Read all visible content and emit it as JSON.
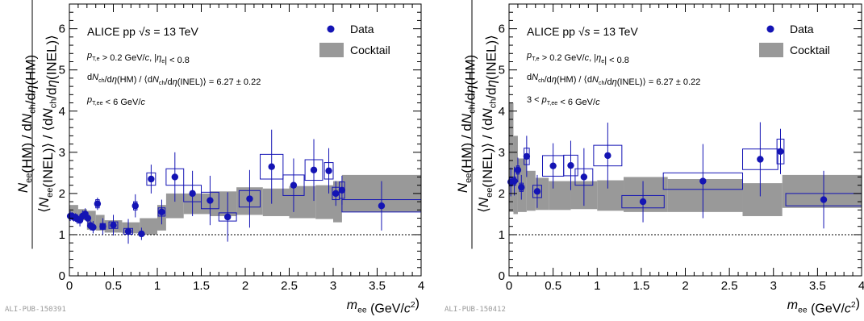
{
  "figure": {
    "ylabel_top": "N_ee(HM) / dN_ch/dη(HM)",
    "ylabel_bottom": "⟨N_ee(INEL)⟩ / ⟨dN_ch/dη(INEL)⟩",
    "xlabel": "m_ee (GeV/c²)",
    "colors": {
      "data": "#1414b4",
      "band": "#999999",
      "box": "#1414b4"
    }
  },
  "chart_data": [
    {
      "id": "ALI-PUB-150391",
      "type": "scatter",
      "footer": "ALI-PUB-150391",
      "title_lines": [
        "ALICE pp √s = 13 TeV",
        "p_T,e > 0.2 GeV/c, |η_e| < 0.8",
        "dN_ch/dη(HM) / ⟨dN_ch/dη(INEL)⟩ = 6.27 ± 0.22",
        "p_T,ee < 6 GeV/c"
      ],
      "legend": [
        "Data",
        "Cocktail"
      ],
      "xlim": [
        0,
        4
      ],
      "ylim": [
        0,
        6.6
      ],
      "xticks": [
        "0",
        "0.5",
        "1",
        "1.5",
        "2",
        "2.5",
        "3",
        "3.5",
        "4"
      ],
      "yticks": [
        "0",
        "1",
        "2",
        "3",
        "4",
        "5",
        "6"
      ],
      "reference_line": 1,
      "points": [
        {
          "x": 0.01,
          "y": 1.45,
          "stat": 0.12,
          "sys": 0.07,
          "bw": 0.01
        },
        {
          "x": 0.03,
          "y": 1.45,
          "stat": 0.1,
          "sys": 0.07,
          "bw": 0.01
        },
        {
          "x": 0.05,
          "y": 1.42,
          "stat": 0.1,
          "sys": 0.07,
          "bw": 0.01
        },
        {
          "x": 0.07,
          "y": 1.42,
          "stat": 0.1,
          "sys": 0.07,
          "bw": 0.01
        },
        {
          "x": 0.09,
          "y": 1.38,
          "stat": 0.12,
          "sys": 0.07,
          "bw": 0.01
        },
        {
          "x": 0.12,
          "y": 1.35,
          "stat": 0.15,
          "sys": 0.07,
          "bw": 0.015
        },
        {
          "x": 0.15,
          "y": 1.45,
          "stat": 0.14,
          "sys": 0.07,
          "bw": 0.015
        },
        {
          "x": 0.18,
          "y": 1.5,
          "stat": 0.14,
          "sys": 0.07,
          "bw": 0.015
        },
        {
          "x": 0.21,
          "y": 1.4,
          "stat": 0.15,
          "sys": 0.07,
          "bw": 0.015
        },
        {
          "x": 0.24,
          "y": 1.22,
          "stat": 0.12,
          "sys": 0.07,
          "bw": 0.015
        },
        {
          "x": 0.27,
          "y": 1.18,
          "stat": 0.15,
          "sys": 0.07,
          "bw": 0.015
        },
        {
          "x": 0.32,
          "y": 1.75,
          "stat": 0.15,
          "sys": 0.1,
          "bw": 0.02
        },
        {
          "x": 0.38,
          "y": 1.2,
          "stat": 0.2,
          "sys": 0.07,
          "bw": 0.03
        },
        {
          "x": 0.5,
          "y": 1.23,
          "stat": 0.25,
          "sys": 0.08,
          "bw": 0.05
        },
        {
          "x": 0.67,
          "y": 1.08,
          "stat": 0.3,
          "sys": 0.07,
          "bw": 0.05
        },
        {
          "x": 0.75,
          "y": 1.7,
          "stat": 0.28,
          "sys": 0.1,
          "bw": 0.02
        },
        {
          "x": 0.82,
          "y": 1.02,
          "stat": 0.15,
          "sys": 0.06,
          "bw": 0.02
        },
        {
          "x": 0.93,
          "y": 2.35,
          "stat": 0.35,
          "sys": 0.15,
          "bw": 0.05
        },
        {
          "x": 1.05,
          "y": 1.55,
          "stat": 0.3,
          "sys": 0.1,
          "bw": 0.04
        },
        {
          "x": 1.2,
          "y": 2.4,
          "stat": 0.6,
          "sys": 0.2,
          "bw": 0.1
        },
        {
          "x": 1.4,
          "y": 2.0,
          "stat": 0.55,
          "sys": 0.2,
          "bw": 0.1
        },
        {
          "x": 1.6,
          "y": 1.83,
          "stat": 0.6,
          "sys": 0.2,
          "bw": 0.1
        },
        {
          "x": 1.8,
          "y": 1.43,
          "stat": 0.6,
          "sys": 0.1,
          "bw": 0.1
        },
        {
          "x": 2.05,
          "y": 1.87,
          "stat": 0.7,
          "sys": 0.2,
          "bw": 0.12
        },
        {
          "x": 2.3,
          "y": 2.65,
          "stat": 0.9,
          "sys": 0.3,
          "bw": 0.13
        },
        {
          "x": 2.55,
          "y": 2.2,
          "stat": 0.65,
          "sys": 0.25,
          "bw": 0.12
        },
        {
          "x": 2.78,
          "y": 2.57,
          "stat": 0.75,
          "sys": 0.25,
          "bw": 0.1
        },
        {
          "x": 2.95,
          "y": 2.55,
          "stat": 0.55,
          "sys": 0.2,
          "bw": 0.05
        },
        {
          "x": 3.03,
          "y": 2.0,
          "stat": 0.3,
          "sys": 0.15,
          "bw": 0.04
        },
        {
          "x": 3.1,
          "y": 2.08,
          "stat": 0.35,
          "sys": 0.2,
          "bw": 0.03
        },
        {
          "x": 3.55,
          "y": 1.7,
          "stat": 0.6,
          "sys": 0.15,
          "bw": 0.45
        }
      ],
      "band": [
        {
          "x0": 0.0,
          "x1": 0.1,
          "lo": 1.45,
          "hi": 1.72
        },
        {
          "x0": 0.1,
          "x1": 0.2,
          "lo": 1.35,
          "hi": 1.62
        },
        {
          "x0": 0.2,
          "x1": 0.3,
          "lo": 1.12,
          "hi": 1.58
        },
        {
          "x0": 0.3,
          "x1": 0.4,
          "lo": 1.1,
          "hi": 1.48
        },
        {
          "x0": 0.4,
          "x1": 0.6,
          "lo": 1.05,
          "hi": 1.35
        },
        {
          "x0": 0.6,
          "x1": 0.8,
          "lo": 1.03,
          "hi": 1.3
        },
        {
          "x0": 0.8,
          "x1": 1.0,
          "lo": 1.0,
          "hi": 1.4
        },
        {
          "x0": 1.0,
          "x1": 1.1,
          "lo": 1.1,
          "hi": 1.72
        },
        {
          "x0": 1.1,
          "x1": 1.3,
          "lo": 1.4,
          "hi": 2.0
        },
        {
          "x0": 1.3,
          "x1": 1.6,
          "lo": 1.5,
          "hi": 2.0
        },
        {
          "x0": 1.6,
          "x1": 1.9,
          "lo": 1.45,
          "hi": 2.05
        },
        {
          "x0": 1.9,
          "x1": 2.2,
          "lo": 1.48,
          "hi": 2.15
        },
        {
          "x0": 2.2,
          "x1": 2.5,
          "lo": 1.45,
          "hi": 2.12
        },
        {
          "x0": 2.5,
          "x1": 2.8,
          "lo": 1.4,
          "hi": 2.18
        },
        {
          "x0": 2.8,
          "x1": 3.0,
          "lo": 1.38,
          "hi": 2.2
        },
        {
          "x0": 3.0,
          "x1": 3.1,
          "lo": 1.3,
          "hi": 2.3
        },
        {
          "x0": 3.1,
          "x1": 4.0,
          "lo": 1.55,
          "hi": 2.45
        }
      ]
    },
    {
      "id": "ALI-PUB-150412",
      "type": "scatter",
      "footer": "ALI-PUB-150412",
      "title_lines": [
        "ALICE pp √s = 13 TeV",
        "p_T,e > 0.2 GeV/c, |η_e| < 0.8",
        "dN_ch/dη(HM) / ⟨dN_ch/dη(INEL)⟩ = 6.27 ± 0.22",
        "3 < p_T,ee < 6 GeV/c"
      ],
      "legend": [
        "Data",
        "Cocktail"
      ],
      "xlim": [
        0,
        4
      ],
      "ylim": [
        0,
        6.6
      ],
      "xticks": [
        "0",
        "0.5",
        "1",
        "1.5",
        "2",
        "2.5",
        "3",
        "3.5",
        "4"
      ],
      "yticks": [
        "0",
        "1",
        "2",
        "3",
        "4",
        "5",
        "6"
      ],
      "reference_line": 1,
      "points": [
        {
          "x": 0.02,
          "y": 2.28,
          "stat": 0.35,
          "sys": 0.1,
          "bw": 0.015
        },
        {
          "x": 0.06,
          "y": 2.3,
          "stat": 0.35,
          "sys": 0.1,
          "bw": 0.015
        },
        {
          "x": 0.1,
          "y": 2.57,
          "stat": 0.3,
          "sys": 0.1,
          "bw": 0.015
        },
        {
          "x": 0.14,
          "y": 2.15,
          "stat": 0.3,
          "sys": 0.1,
          "bw": 0.02
        },
        {
          "x": 0.2,
          "y": 2.9,
          "stat": 0.5,
          "sys": 0.2,
          "bw": 0.03
        },
        {
          "x": 0.32,
          "y": 2.05,
          "stat": 0.4,
          "sys": 0.15,
          "bw": 0.05
        },
        {
          "x": 0.5,
          "y": 2.67,
          "stat": 0.55,
          "sys": 0.25,
          "bw": 0.12
        },
        {
          "x": 0.7,
          "y": 2.68,
          "stat": 0.6,
          "sys": 0.25,
          "bw": 0.08
        },
        {
          "x": 0.85,
          "y": 2.4,
          "stat": 0.7,
          "sys": 0.2,
          "bw": 0.1
        },
        {
          "x": 1.12,
          "y": 2.92,
          "stat": 0.8,
          "sys": 0.25,
          "bw": 0.16
        },
        {
          "x": 1.52,
          "y": 1.8,
          "stat": 0.5,
          "sys": 0.15,
          "bw": 0.24
        },
        {
          "x": 2.2,
          "y": 2.3,
          "stat": 0.9,
          "sys": 0.2,
          "bw": 0.45
        },
        {
          "x": 2.85,
          "y": 2.83,
          "stat": 0.9,
          "sys": 0.25,
          "bw": 0.2
        },
        {
          "x": 3.08,
          "y": 3.02,
          "stat": 0.55,
          "sys": 0.3,
          "bw": 0.04
        },
        {
          "x": 3.57,
          "y": 1.85,
          "stat": 0.7,
          "sys": 0.15,
          "bw": 0.43
        }
      ],
      "band": [
        {
          "x0": 0.0,
          "x1": 0.05,
          "lo": 1.55,
          "hi": 4.2
        },
        {
          "x0": 0.05,
          "x1": 0.1,
          "lo": 1.5,
          "hi": 3.4
        },
        {
          "x0": 0.1,
          "x1": 0.2,
          "lo": 1.55,
          "hi": 2.85
        },
        {
          "x0": 0.2,
          "x1": 0.3,
          "lo": 1.58,
          "hi": 2.55
        },
        {
          "x0": 0.3,
          "x1": 0.45,
          "lo": 1.6,
          "hi": 2.38
        },
        {
          "x0": 0.45,
          "x1": 0.7,
          "lo": 1.6,
          "hi": 2.3
        },
        {
          "x0": 0.7,
          "x1": 1.0,
          "lo": 1.62,
          "hi": 2.3
        },
        {
          "x0": 1.0,
          "x1": 1.3,
          "lo": 1.58,
          "hi": 2.32
        },
        {
          "x0": 1.3,
          "x1": 1.8,
          "lo": 1.55,
          "hi": 2.4
        },
        {
          "x0": 1.8,
          "x1": 2.65,
          "lo": 1.55,
          "hi": 2.35
        },
        {
          "x0": 2.65,
          "x1": 3.1,
          "lo": 1.45,
          "hi": 2.25
        },
        {
          "x0": 3.1,
          "x1": 4.0,
          "lo": 1.65,
          "hi": 2.45
        }
      ]
    }
  ]
}
